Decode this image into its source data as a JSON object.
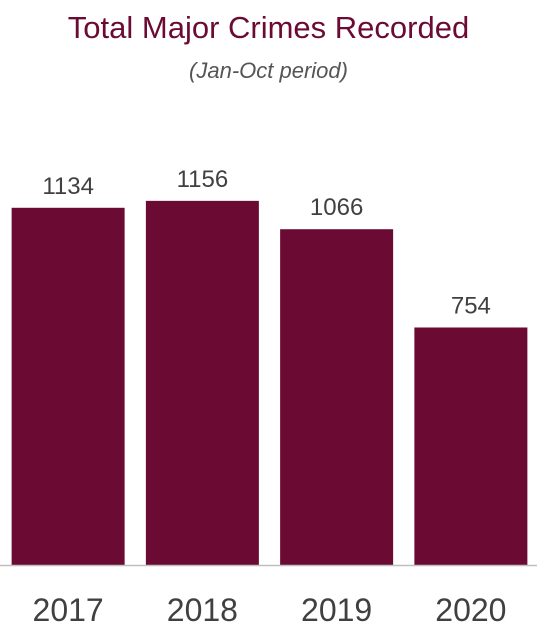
{
  "chart_data": {
    "type": "bar",
    "title": "Total Major Crimes Recorded",
    "subtitle": "(Jan-Oct period)",
    "categories": [
      "2017",
      "2018",
      "2019",
      "2020"
    ],
    "values": [
      1134,
      1156,
      1066,
      754
    ],
    "data_labels": [
      "1134",
      "1156",
      "1066",
      "754"
    ],
    "xlabel": "",
    "ylabel": "",
    "ylim": [
      0,
      1250
    ],
    "grid": false,
    "legend": "none",
    "colors": {
      "bar": "#6b0b34",
      "title": "#6b0b34",
      "subtitle": "#555555",
      "labels": "#404040",
      "axis": "#bfbfbf"
    }
  }
}
